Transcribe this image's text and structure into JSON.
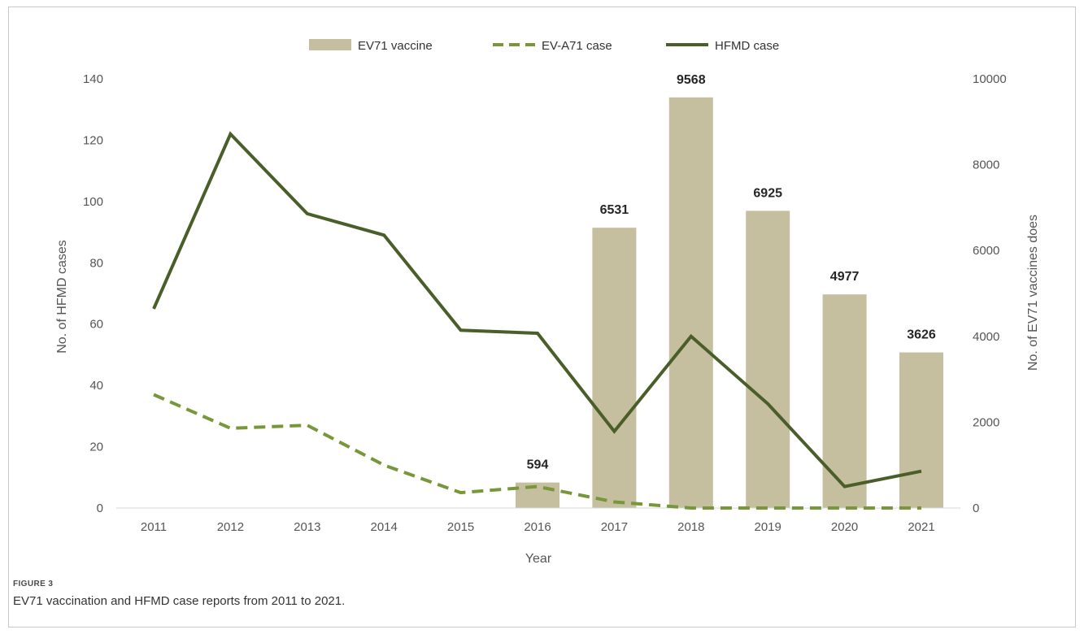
{
  "figure": {
    "label": "FIGURE 3",
    "caption": "EV71 vaccination and HFMD case reports from 2011 to 2021."
  },
  "chart_data": {
    "type": "bar+line",
    "xlabel": "Year",
    "ylabel_left": "No. of HFMD cases",
    "ylabel_right": "No. of  EV71 vaccines does",
    "ylim_left": [
      0,
      140
    ],
    "yticks_left": [
      "0",
      "20",
      "40",
      "60",
      "80",
      "100",
      "120",
      "140"
    ],
    "ylim_right": [
      0,
      10000
    ],
    "yticks_right": [
      "0",
      "2000",
      "4000",
      "6000",
      "8000",
      "10000"
    ],
    "categories": [
      "2011",
      "2012",
      "2013",
      "2014",
      "2015",
      "2016",
      "2017",
      "2018",
      "2019",
      "2020",
      "2021"
    ],
    "legend_position": "top",
    "grid": false,
    "series": [
      {
        "name": "EV71 vaccine",
        "kind": "bar",
        "axis": "right",
        "color": "#c5bf9f",
        "values": [
          0,
          0,
          0,
          0,
          0,
          594,
          6531,
          9568,
          6925,
          4977,
          3626
        ],
        "labels": [
          "",
          "",
          "",
          "",
          "",
          "594",
          "6531",
          "9568",
          "6925",
          "4977",
          "3626"
        ]
      },
      {
        "name": "EV-A71 case",
        "kind": "line",
        "style": "dashed",
        "axis": "left",
        "color": "#77973a",
        "values": [
          37,
          26,
          27,
          14,
          5,
          7,
          2,
          0,
          0,
          0,
          0
        ]
      },
      {
        "name": "HFMD case",
        "kind": "line",
        "style": "solid",
        "axis": "left",
        "color": "#4a5e29",
        "values": [
          65,
          122,
          96,
          89,
          58,
          57,
          25,
          56,
          34,
          7,
          12
        ]
      }
    ]
  }
}
